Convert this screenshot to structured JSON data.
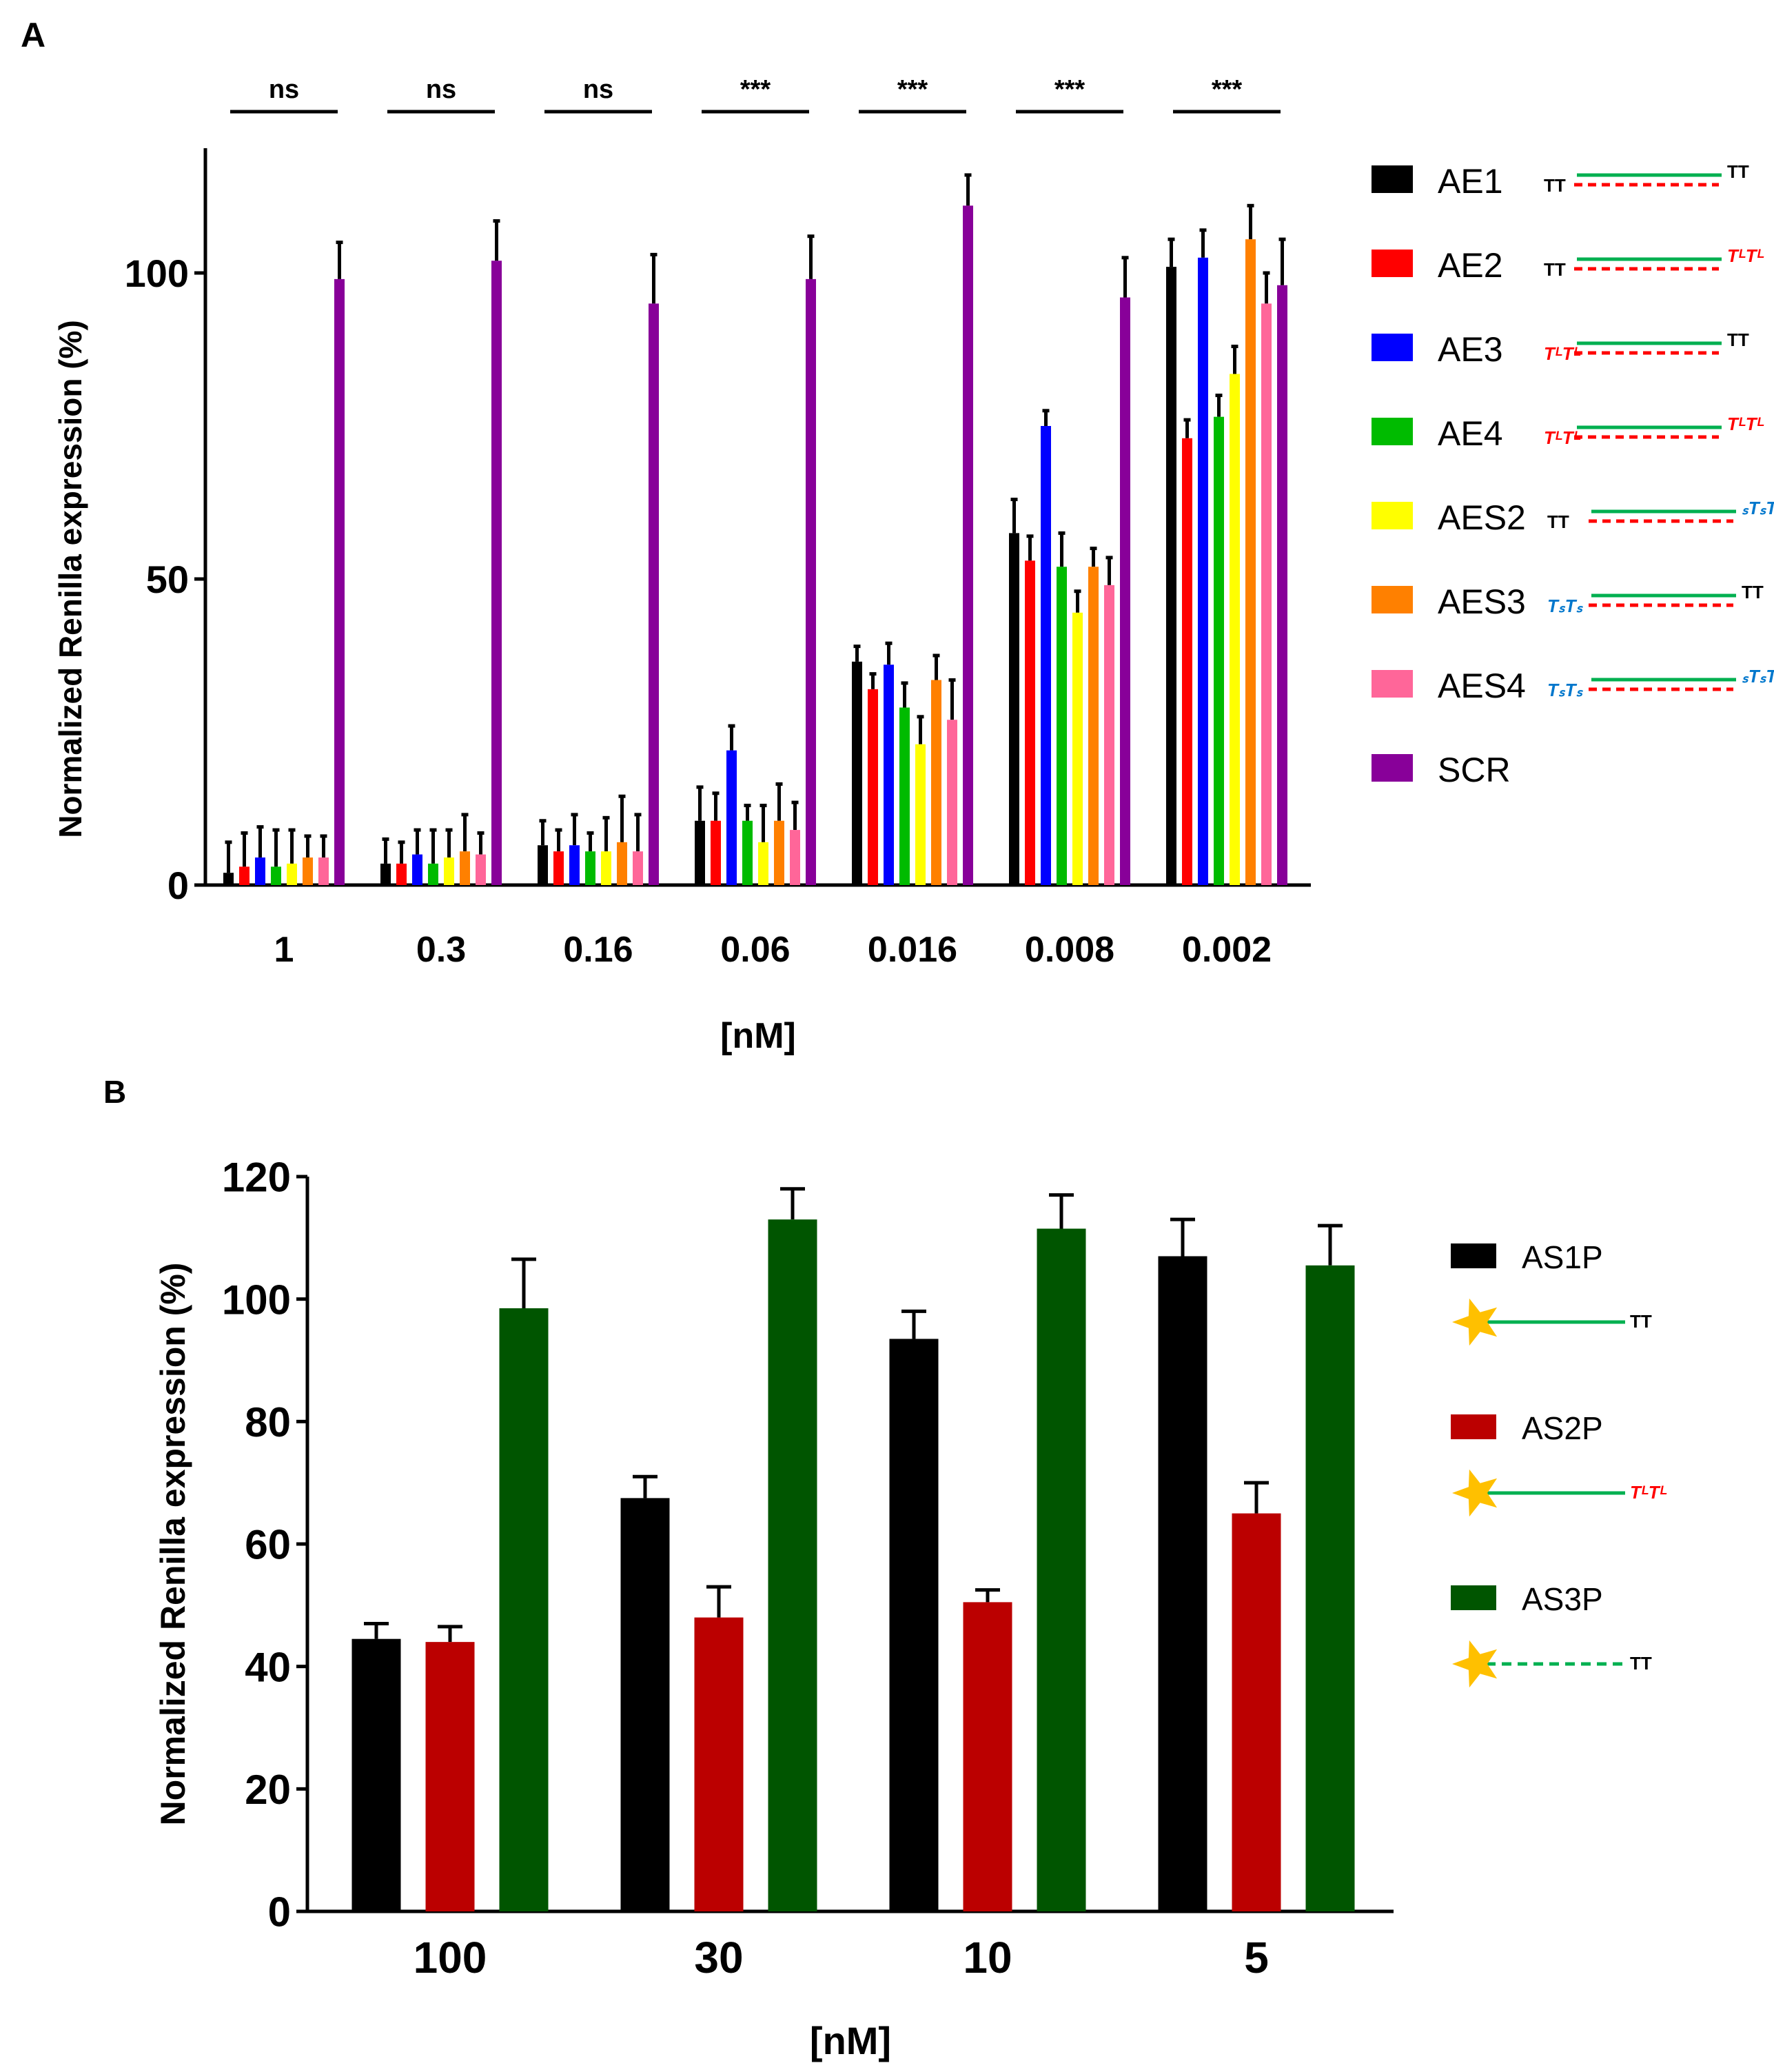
{
  "chart_data": [
    {
      "panel": "A",
      "type": "bar",
      "title": "",
      "xlabel": "[nM]",
      "ylabel": "Normalized Renilla expression (%)",
      "ylim": [
        0,
        120
      ],
      "yticks": [
        "0",
        "50",
        "100"
      ],
      "categories": [
        "1",
        "0.3",
        "0.16",
        "0.06",
        "0.016",
        "0.008",
        "0.002"
      ],
      "significance": [
        "ns",
        "ns",
        "ns",
        "***",
        "***",
        "***",
        "***"
      ],
      "legend_position": "right",
      "series": [
        {
          "name": "AE1",
          "color": "#000000",
          "mods": {
            "left": "TT",
            "left_color": "#000000",
            "right": "TT",
            "right_color": "#000000"
          },
          "values": [
            2,
            3.5,
            6.5,
            10.5,
            36.5,
            57.5,
            101
          ],
          "errors": [
            5,
            4,
            4,
            5.5,
            2.5,
            5.5,
            4.5
          ]
        },
        {
          "name": "AE2",
          "color": "#ff0000",
          "mods": {
            "left": "TT",
            "left_color": "#000000",
            "right": "TᴸTᴸ",
            "right_color": "#ff0000"
          },
          "values": [
            3,
            3.5,
            5.5,
            10.5,
            32,
            53,
            73
          ],
          "errors": [
            5.5,
            3.5,
            3.5,
            4.5,
            2.5,
            4,
            3
          ]
        },
        {
          "name": "AE3",
          "color": "#0000ff",
          "mods": {
            "left": "TᴸTᴸ",
            "left_color": "#ff0000",
            "right": "TT",
            "right_color": "#000000"
          },
          "values": [
            4.5,
            5,
            6.5,
            22,
            36,
            75,
            102.5
          ],
          "errors": [
            5,
            4,
            5,
            4,
            3.5,
            2.5,
            4.5
          ]
        },
        {
          "name": "AE4",
          "color": "#00bb00",
          "mods": {
            "left": "TᴸTᴸ",
            "left_color": "#ff0000",
            "right": "TᴸTᴸ",
            "right_color": "#ff0000"
          },
          "values": [
            3,
            3.5,
            5.5,
            10.5,
            29,
            52,
            76.5
          ],
          "errors": [
            6,
            5.5,
            3,
            2.5,
            4,
            5.5,
            3.5
          ]
        },
        {
          "name": "AES2",
          "color": "#ffff00",
          "mods": {
            "left": "TT",
            "left_color": "#000000",
            "right": "ₛTₛT",
            "right_color": "#0077cc"
          },
          "values": [
            3.5,
            4.5,
            5.5,
            7,
            23,
            44.5,
            83.5
          ],
          "errors": [
            5.5,
            4.5,
            5.5,
            6,
            4.5,
            3.5,
            4.5
          ]
        },
        {
          "name": "AES3",
          "color": "#ff8000",
          "mods": {
            "left": "TₛTₛ",
            "left_color": "#0077cc",
            "right": "TT",
            "right_color": "#000000"
          },
          "values": [
            4.5,
            5.5,
            7,
            10.5,
            33.5,
            52,
            105.5
          ],
          "errors": [
            3.5,
            6,
            7.5,
            6,
            4,
            3,
            5.5
          ]
        },
        {
          "name": "AES4",
          "color": "#ff6699",
          "mods": {
            "left": "TₛTₛ",
            "left_color": "#0077cc",
            "right": "ₛTₛT",
            "right_color": "#0077cc"
          },
          "values": [
            4.5,
            5,
            5.5,
            9,
            27,
            49,
            95
          ],
          "errors": [
            3.5,
            3.5,
            6,
            4.5,
            6.5,
            4.5,
            5
          ]
        },
        {
          "name": "SCR",
          "color": "#880099",
          "mods": null,
          "values": [
            99,
            102,
            95,
            99,
            111,
            96,
            98
          ],
          "errors": [
            6,
            6.5,
            8,
            7,
            5,
            6.5,
            7.5
          ]
        }
      ]
    },
    {
      "panel": "B",
      "type": "bar",
      "title": "",
      "xlabel": "[nM]",
      "ylabel": "Normalized Renilla expression (%)",
      "ylim": [
        0,
        120
      ],
      "yticks": [
        "0",
        "20",
        "40",
        "60",
        "80",
        "100",
        "120"
      ],
      "categories": [
        "100",
        "30",
        "10",
        "5"
      ],
      "legend_position": "right",
      "series": [
        {
          "name": "AS1P",
          "color": "#000000",
          "mods": {
            "right": "TT",
            "right_color": "#000000",
            "dashed": false
          },
          "values": [
            44.5,
            67.5,
            93.5,
            107
          ],
          "errors": [
            2.5,
            3.5,
            4.5,
            6
          ]
        },
        {
          "name": "AS2P",
          "color": "#bb0000",
          "mods": {
            "right": "TᴸTᴸ",
            "right_color": "#ff0000",
            "dashed": false
          },
          "values": [
            44,
            48,
            50.5,
            65
          ],
          "errors": [
            2.5,
            5,
            2,
            5
          ]
        },
        {
          "name": "AS3P",
          "color": "#005500",
          "mods": {
            "right": "TT",
            "right_color": "#000000",
            "dashed": true
          },
          "values": [
            98.5,
            113,
            111.5,
            105.5
          ],
          "errors": [
            8,
            5,
            5.5,
            6.5
          ]
        }
      ]
    }
  ],
  "panel_labels": [
    "A",
    "B"
  ],
  "colors": {
    "strand_green": "#00b050",
    "strand_red": "#ff0000",
    "star": "#ffc000",
    "axis": "#000000"
  }
}
